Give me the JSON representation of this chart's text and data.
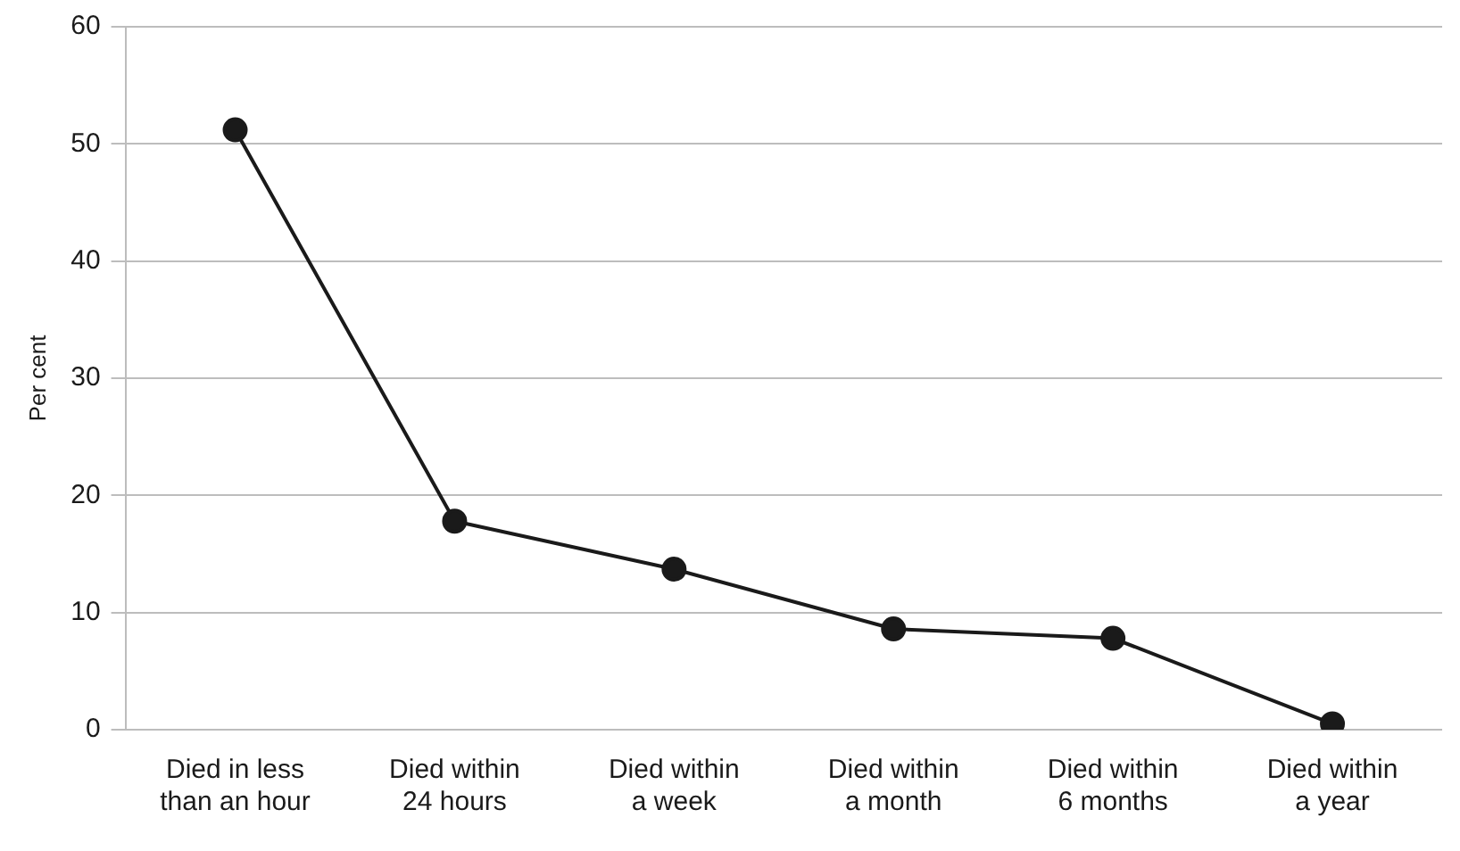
{
  "chart_data": {
    "type": "line",
    "ylabel": "Per cent",
    "categories": [
      "Died in less than an hour",
      "Died within 24 hours",
      "Died within a week",
      "Died within a month",
      "Died within 6 months",
      "Died within a year"
    ],
    "series": [
      {
        "color": "#1a1a1a",
        "values": [
          51.2,
          17.8,
          13.7,
          8.6,
          7.8,
          0.5
        ]
      }
    ],
    "ylim": [
      0,
      60
    ],
    "yticks": [
      0,
      10,
      20,
      30,
      40,
      50,
      60
    ],
    "grid": "y",
    "legend": false,
    "marker": "circle",
    "line_style": "solid"
  }
}
